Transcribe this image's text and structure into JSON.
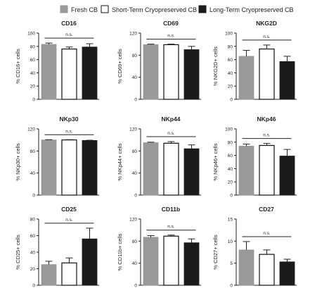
{
  "legend": [
    {
      "label": "Fresh CB",
      "color": "#999999"
    },
    {
      "label": "Short-Term Cryopreserved CB",
      "color": "#ffffff"
    },
    {
      "label": "Long-Term Cryopreserved CB",
      "color": "#1a1a1a"
    }
  ],
  "chart_data": [
    {
      "type": "bar",
      "title": "CD16",
      "ylabel": "% CD16+ cells",
      "ylim": [
        0,
        100
      ],
      "yticks": [
        0,
        20,
        40,
        60,
        80,
        100
      ],
      "categories": [
        "Fresh CB",
        "Short-Term Cryopreserved CB",
        "Long-Term Cryopreserved CB"
      ],
      "values": [
        83,
        76,
        79
      ],
      "errors": [
        2,
        3,
        5
      ],
      "annotation": "n.s."
    },
    {
      "type": "bar",
      "title": "CD69",
      "ylabel": "% CD69+ cells",
      "ylim": [
        0,
        120
      ],
      "yticks": [
        0,
        40,
        80,
        120
      ],
      "categories": [
        "Fresh CB",
        "Short-Term Cryopreserved CB",
        "Long-Term Cryopreserved CB"
      ],
      "values": [
        99,
        99,
        90
      ],
      "errors": [
        1,
        1,
        6
      ],
      "annotation": "n.s."
    },
    {
      "type": "bar",
      "title": "NKG2D",
      "ylabel": "% NKG2D+ cells",
      "ylim": [
        0,
        100
      ],
      "yticks": [
        0,
        20,
        40,
        60,
        80,
        100
      ],
      "categories": [
        "Fresh CB",
        "Short-Term Cryopreserved CB",
        "Long-Term Cryopreserved CB"
      ],
      "values": [
        65,
        76,
        57
      ],
      "errors": [
        9,
        6,
        8
      ],
      "annotation": "n.s."
    },
    {
      "type": "bar",
      "title": "NKp30",
      "ylabel": "% NKp30+ cells",
      "ylim": [
        0,
        120
      ],
      "yticks": [
        0,
        40,
        80,
        120
      ],
      "categories": [
        "Fresh CB",
        "Short-Term Cryopreserved CB",
        "Long-Term Cryopreserved CB"
      ],
      "values": [
        100,
        100,
        99
      ],
      "errors": [
        0.5,
        0.5,
        0.5
      ],
      "annotation": "n.s."
    },
    {
      "type": "bar",
      "title": "NKp44",
      "ylabel": "% NKp44+ cells",
      "ylim": [
        0,
        120
      ],
      "yticks": [
        0,
        40,
        80,
        120
      ],
      "categories": [
        "Fresh CB",
        "Short-Term Cryopreserved CB",
        "Long-Term Cryopreserved CB"
      ],
      "values": [
        95,
        94,
        84
      ],
      "errors": [
        1,
        3,
        7
      ],
      "annotation": "n.s."
    },
    {
      "type": "bar",
      "title": "NKp46",
      "ylabel": "% NKp46+ cells",
      "ylim": [
        0,
        100
      ],
      "yticks": [
        0,
        20,
        40,
        60,
        80,
        100
      ],
      "categories": [
        "Fresh CB",
        "Short-Term Cryopreserved CB",
        "Long-Term Cryopreserved CB"
      ],
      "values": [
        74,
        75,
        59
      ],
      "errors": [
        3,
        3,
        10
      ],
      "annotation": "n.s."
    },
    {
      "type": "bar",
      "title": "CD25",
      "ylabel": "% CD25+ cells",
      "ylim": [
        0,
        80
      ],
      "yticks": [
        0,
        20,
        40,
        60,
        80
      ],
      "categories": [
        "Fresh CB",
        "Short-Term Cryopreserved CB",
        "Long-Term Cryopreserved CB"
      ],
      "values": [
        25,
        27,
        56
      ],
      "errors": [
        4,
        6,
        13
      ],
      "annotation": "n.s."
    },
    {
      "type": "bar",
      "title": "CD11b",
      "ylabel": "% CD11b+ cells",
      "ylim": [
        0,
        120
      ],
      "yticks": [
        0,
        40,
        80,
        120
      ],
      "categories": [
        "Fresh CB",
        "Short-Term Cryopreserved CB",
        "Long-Term Cryopreserved CB"
      ],
      "values": [
        87,
        89,
        77
      ],
      "errors": [
        3,
        2,
        7
      ],
      "annotation": "n.s."
    },
    {
      "type": "bar",
      "title": "CD27",
      "ylabel": "% CD27+ cells",
      "ylim": [
        0,
        15
      ],
      "yticks": [
        0,
        5,
        10,
        15
      ],
      "categories": [
        "Fresh CB",
        "Short-Term Cryopreserved CB",
        "Long-Term Cryopreserved CB"
      ],
      "values": [
        8,
        7,
        5.3
      ],
      "errors": [
        1.9,
        1,
        0.6
      ],
      "annotation": "n.s."
    }
  ]
}
